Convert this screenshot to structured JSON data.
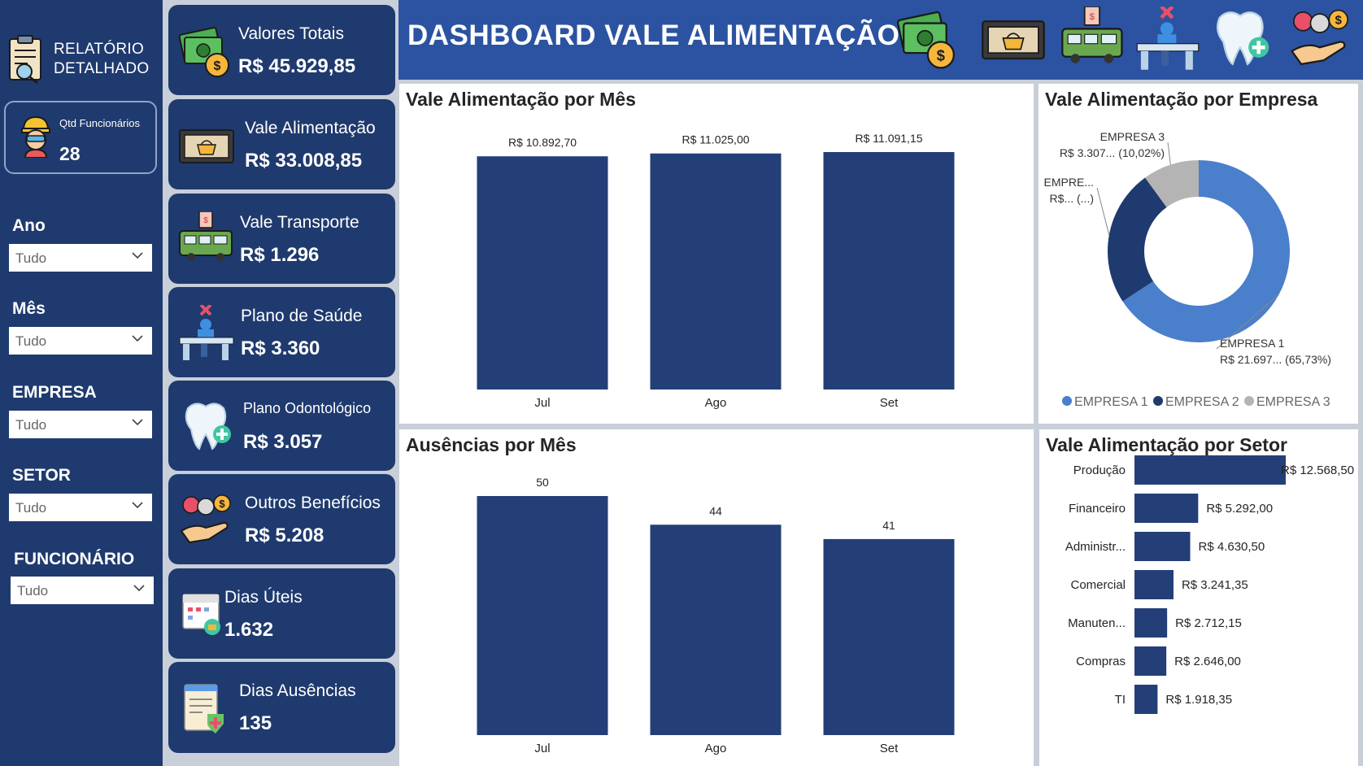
{
  "sidebar": {
    "report_button": "RELATÓRIO DETALHADO",
    "employees": {
      "label": "Qtd Funcionários",
      "value": "28"
    },
    "filters": [
      {
        "label": "Ano",
        "value": "Tudo"
      },
      {
        "label": "Mês",
        "value": "Tudo"
      },
      {
        "label": "EMPRESA",
        "value": "Tudo"
      },
      {
        "label": "SETOR",
        "value": "Tudo"
      },
      {
        "label": "FUNCIONÁRIO",
        "value": "Tudo"
      }
    ]
  },
  "kpis": [
    {
      "label": "Valores Totais",
      "value": "R$ 45.929,85",
      "icon": "money-icon"
    },
    {
      "label": "Vale Alimentação",
      "value": "R$ 33.008,85",
      "icon": "food-voucher-icon"
    },
    {
      "label": "Vale Transporte",
      "value": "R$ 1.296",
      "icon": "bus-icon"
    },
    {
      "label": "Plano de Saúde",
      "value": "R$ 3.360",
      "icon": "health-desk-icon"
    },
    {
      "label": "Plano Odontológico",
      "value": "R$ 3.057",
      "icon": "tooth-icon"
    },
    {
      "label": "Outros Benefícios",
      "value": "R$ 5.208",
      "icon": "benefits-hand-icon"
    },
    {
      "label": "Dias Úteis",
      "value": "1.632",
      "icon": "calendar-icon"
    },
    {
      "label": "Dias Ausências",
      "value": "135",
      "icon": "absence-report-icon"
    }
  ],
  "header": {
    "title": "DASHBOARD VALE ALIMENTAÇÃO",
    "icons": [
      "money-icon",
      "food-voucher-icon",
      "bus-icon",
      "health-desk-icon",
      "tooth-icon",
      "benefits-hand-icon"
    ]
  },
  "colors": {
    "navy": "#1f3a6e",
    "bar": "#243f77",
    "header": "#2c53a1",
    "empresa1": "#4a7fcc",
    "empresa2": "#1f3a6e",
    "empresa3": "#b4b4b4"
  },
  "chart_data": [
    {
      "type": "bar",
      "title": "Vale Alimentação por Mês",
      "categories": [
        "Jul",
        "Ago",
        "Set"
      ],
      "values": [
        10892.7,
        11025.0,
        11091.15
      ],
      "data_labels": [
        "R$ 10.892,70",
        "R$ 11.025,00",
        "R$ 11.091,15"
      ],
      "ylim": [
        0,
        11091.15
      ]
    },
    {
      "type": "pie",
      "title": "Vale Alimentação por Empresa",
      "categories": [
        "EMPRESA 1",
        "EMPRESA 2",
        "EMPRESA 3"
      ],
      "values": [
        65.73,
        24.25,
        10.02
      ],
      "data_labels": [
        [
          "EMPRESA 1",
          "R$ 21.697... (65,73%)"
        ],
        [
          "EMPRE...",
          "R$... (...)"
        ],
        [
          "EMPRESA 3",
          "R$ 3.307... (10,02%)"
        ]
      ],
      "legend": "bottom"
    },
    {
      "type": "bar",
      "title": "Ausências por Mês",
      "categories": [
        "Jul",
        "Ago",
        "Set"
      ],
      "values": [
        50,
        44,
        41
      ],
      "data_labels": [
        "50",
        "44",
        "41"
      ],
      "ylim": [
        0,
        50
      ]
    },
    {
      "type": "bar",
      "orientation": "horizontal",
      "title": "Vale Alimentação por Setor",
      "categories": [
        "Produção",
        "Financeiro",
        "Administr...",
        "Comercial",
        "Manuten...",
        "Compras",
        "TI"
      ],
      "values": [
        12568.5,
        5292.0,
        4630.5,
        3241.35,
        2712.15,
        2646.0,
        1918.35
      ],
      "data_labels": [
        "R$ 12.568,50",
        "R$ 5.292,00",
        "R$ 4.630,50",
        "R$ 3.241,35",
        "R$ 2.712,15",
        "R$ 2.646,00",
        "R$ 1.918,35"
      ]
    }
  ]
}
